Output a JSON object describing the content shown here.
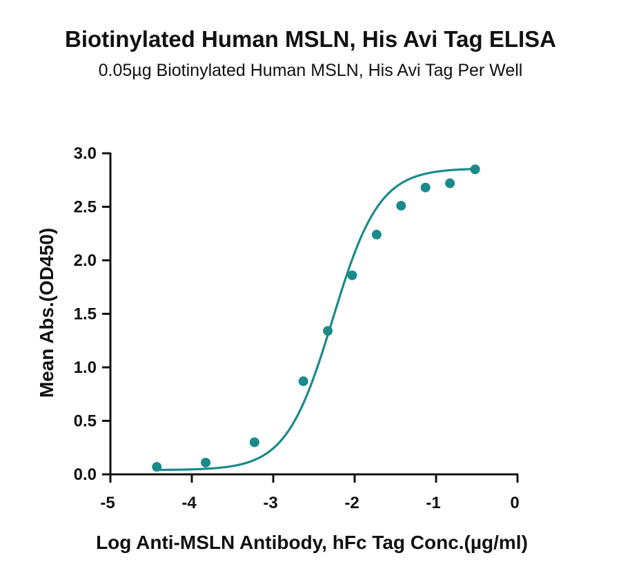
{
  "chart_data": {
    "type": "scatter",
    "title": "Biotinylated Human MSLN, His Avi Tag ELISA",
    "subtitle": "0.05µg Biotinylated Human MSLN, His Avi Tag Per Well",
    "xlabel": "Log Anti-MSLN Antibody, hFc Tag Conc.(µg/ml)",
    "ylabel": "Mean Abs.(OD450)",
    "xlim": [
      -5,
      0
    ],
    "ylim": [
      0,
      3
    ],
    "x_ticks": [
      -5,
      -4,
      -3,
      -2,
      -1,
      0
    ],
    "y_ticks": [
      0.0,
      0.5,
      1.0,
      1.5,
      2.0,
      2.5,
      3.0
    ],
    "x_tick_labels": [
      "-5",
      "-4",
      "-3",
      "-2",
      "-1",
      "0"
    ],
    "y_tick_labels": [
      "0.0",
      "0.5",
      "1.0",
      "1.5",
      "2.0",
      "2.5",
      "3.0"
    ],
    "grid": false,
    "color": "#1a8a8a",
    "series": [
      {
        "x": [
          -4.43,
          -3.83,
          -3.23,
          -2.63,
          -2.33,
          -2.03,
          -1.73,
          -1.43,
          -1.13,
          -0.83,
          -0.52
        ],
        "y": [
          0.07,
          0.11,
          0.3,
          0.87,
          1.34,
          1.86,
          2.24,
          2.51,
          2.68,
          2.72,
          2.85
        ]
      }
    ],
    "fit_curve": "four-parameter logistic"
  }
}
